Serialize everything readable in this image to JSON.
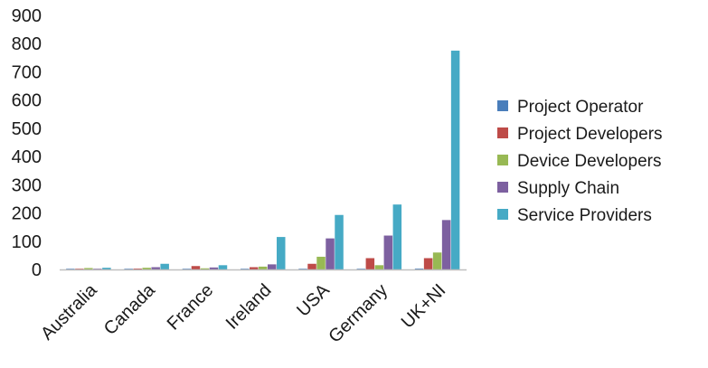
{
  "chart_data": {
    "type": "bar",
    "title": "",
    "xlabel": "",
    "ylabel": "",
    "ylim": [
      0,
      900
    ],
    "yticks": [
      0,
      100,
      200,
      300,
      400,
      500,
      600,
      700,
      800,
      900
    ],
    "grid": false,
    "legend_position": "right",
    "categories": [
      "Australia",
      "Canada",
      "France",
      "Ireland",
      "USA",
      "Germany",
      "UK+NI"
    ],
    "series": [
      {
        "name": "Project Operator",
        "color": "#4a7ebb",
        "values": [
          1,
          1,
          1,
          2,
          2,
          2,
          3
        ]
      },
      {
        "name": "Project Developers",
        "color": "#be4b48",
        "values": [
          1,
          3,
          12,
          8,
          20,
          40,
          40
        ]
      },
      {
        "name": "Device Developers",
        "color": "#98b954",
        "values": [
          5,
          6,
          4,
          10,
          45,
          15,
          60
        ]
      },
      {
        "name": "Supply Chain",
        "color": "#7d60a0",
        "values": [
          2,
          8,
          7,
          18,
          110,
          120,
          175
        ]
      },
      {
        "name": "Service Providers",
        "color": "#46aac5",
        "values": [
          6,
          20,
          15,
          115,
          193,
          230,
          775
        ]
      }
    ]
  }
}
